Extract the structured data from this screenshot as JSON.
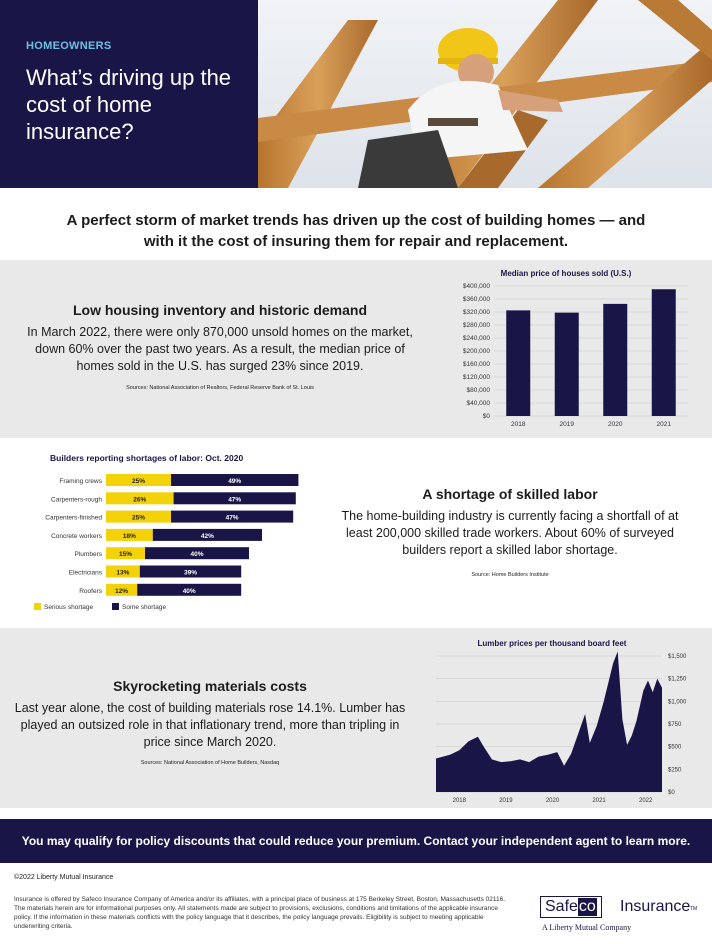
{
  "header": {
    "eyebrow": "HOMEOWNERS",
    "title": "What’s driving up the cost of home insurance?"
  },
  "intro": "A perfect storm of market trends has driven up the cost of building homes — and with it the cost of insuring them for repair and replacement.",
  "section_inventory": {
    "heading": "Low housing inventory and historic demand",
    "body": "In March 2022, there were only 870,000 unsold homes on the market, down 60% over the past two years. As a result, the median price of homes sold in the U.S. has surged 23% since 2019.",
    "sources": "Sources: National Association of Realtors, Federal Reserve Bank of St. Louis"
  },
  "section_labor": {
    "heading": "A shortage of skilled labor",
    "body": "The home-building industry is currently facing a shortfall of at least 200,000 skilled trade workers. About 60% of surveyed builders report a skilled labor shortage.",
    "sources": "Source: Home Builders Institute"
  },
  "section_materials": {
    "heading": "Skyrocketing materials costs",
    "body": "Last year alone, the cost of building materials rose 14.1%. Lumber has played an outsized role in that inflationary trend, more than tripling in price since March 2020.",
    "sources": "Sources: National Association of Home Builders, Nasdaq"
  },
  "cta": "You may qualify for policy discounts that could reduce your premium. Contact your independent agent to learn more.",
  "footer": {
    "copyright": "©2022 Liberty Mutual Insurance",
    "legal": "Insurance is offered by Safeco Insurance Company of America and/or its affiliates, with a principal place of business at 175 Berkeley Street, Boston, Massachusetts 02116. The materials herein are for informational purposes only. All statements made are subject to provisions, exclusions, conditions and limitations of the applicable insurance policy. If the information in these materials conflicts with the policy language that it describes, the policy language prevails. Eligibility is subject to meeting applicable underwriting criteria.",
    "logo_word1": "Safe",
    "logo_word2": "co",
    "logo_word3": "Insurance",
    "logo_tm": "TM",
    "logo_sub": "A Liberty Mutual Company"
  },
  "colors": {
    "navy": "#1a1547",
    "yellow": "#f4d20a",
    "band": "#e9e9e9",
    "accent": "#6fc0e0"
  },
  "chart_data": [
    {
      "type": "bar",
      "title": "Median price of houses sold (U.S.)",
      "categories": [
        "2018",
        "2019",
        "2020",
        "2021"
      ],
      "values": [
        325000,
        318000,
        345000,
        390000
      ],
      "ylim": [
        0,
        400000
      ],
      "yticks": [
        0,
        40000,
        80000,
        120000,
        160000,
        200000,
        240000,
        280000,
        320000,
        360000,
        400000
      ],
      "ytick_labels": [
        "$0",
        "$40,000",
        "$80,000",
        "$120,000",
        "$160,000",
        "$200,000",
        "$240,000",
        "$280,000",
        "$320,000",
        "$360,000",
        "$400,000"
      ],
      "grid": true
    },
    {
      "type": "bar",
      "orientation": "horizontal",
      "stacked": true,
      "title": "Builders reporting shortages of labor: Oct. 2020",
      "categories": [
        "Framing crews",
        "Carpenters-rough",
        "Carpenters-finished",
        "Concrete workers",
        "Plumbers",
        "Electricians",
        "Roofers"
      ],
      "series": [
        {
          "name": "Serious shortage",
          "values": [
            25,
            26,
            25,
            18,
            15,
            13,
            12
          ],
          "labels": [
            "25%",
            "26%",
            "25%",
            "18%",
            "15%",
            "13%",
            "12%"
          ]
        },
        {
          "name": "Some shortage",
          "values": [
            49,
            47,
            47,
            42,
            40,
            39,
            40
          ],
          "labels": [
            "49%",
            "47%",
            "47%",
            "42%",
            "40%",
            "39%",
            "40%"
          ]
        }
      ],
      "legend": "bottom-left"
    },
    {
      "type": "area",
      "title": "Lumber prices per thousand board feet",
      "x": [
        2017.5,
        2017.8,
        2018.0,
        2018.2,
        2018.4,
        2018.5,
        2018.7,
        2018.9,
        2019.1,
        2019.3,
        2019.5,
        2019.7,
        2019.9,
        2020.1,
        2020.25,
        2020.4,
        2020.55,
        2020.7,
        2020.8,
        2020.95,
        2021.1,
        2021.3,
        2021.4,
        2021.5,
        2021.6,
        2021.7,
        2021.8,
        2021.95,
        2022.05,
        2022.15,
        2022.25,
        2022.35
      ],
      "y": [
        370,
        410,
        460,
        560,
        610,
        520,
        360,
        330,
        340,
        360,
        330,
        390,
        410,
        440,
        290,
        420,
        640,
        860,
        540,
        730,
        1000,
        1420,
        1550,
        800,
        520,
        620,
        780,
        1120,
        1230,
        1100,
        1250,
        1150
      ],
      "xtick_labels": [
        "2018",
        "2019",
        "2020",
        "2021",
        "2022"
      ],
      "xticks": [
        2018,
        2019,
        2020,
        2021,
        2022
      ],
      "ylim": [
        0,
        1500
      ],
      "yticks": [
        0,
        250,
        500,
        750,
        1000,
        1250,
        1500
      ],
      "ytick_labels": [
        "$0",
        "$250",
        "$500",
        "$750",
        "$1,000",
        "$1,250",
        "$1,500"
      ],
      "xlim": [
        2017.5,
        2022.35
      ]
    }
  ]
}
